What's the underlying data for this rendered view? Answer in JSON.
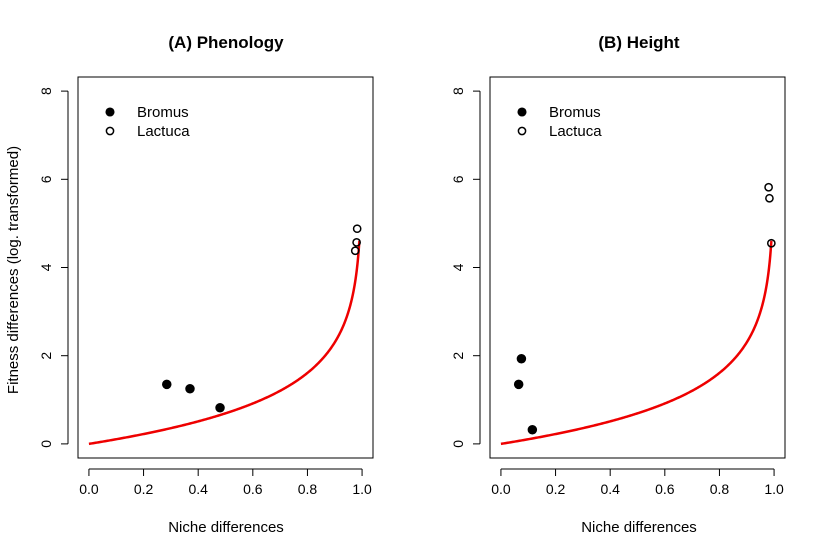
{
  "chart_data": [
    {
      "type": "scatter",
      "title": "(A) Phenology",
      "xlabel": "Niche differences",
      "ylabel": "Fitness differences (log. transformed)",
      "xlim": [
        0.0,
        1.0
      ],
      "ylim": [
        0,
        8
      ],
      "xticks": [
        "0.0",
        "0.2",
        "0.4",
        "0.6",
        "0.8",
        "1.0"
      ],
      "yticks": [
        "0",
        "2",
        "4",
        "6",
        "8"
      ],
      "legend_position": "top-left",
      "series": [
        {
          "name": "Bromus",
          "marker": "filled-circle",
          "points": [
            [
              0.285,
              1.35
            ],
            [
              0.37,
              1.25
            ],
            [
              0.48,
              0.82
            ]
          ]
        },
        {
          "name": "Lactuca",
          "marker": "open-circle",
          "points": [
            [
              0.975,
              4.38
            ],
            [
              0.98,
              4.57
            ],
            [
              0.982,
              4.88
            ]
          ]
        }
      ],
      "curve": {
        "color": "#ee0000",
        "x_max": 0.99
      }
    },
    {
      "type": "scatter",
      "title": "(B) Height",
      "xlabel": "Niche differences",
      "ylabel": "",
      "xlim": [
        0.0,
        1.0
      ],
      "ylim": [
        0,
        8
      ],
      "xticks": [
        "0.0",
        "0.2",
        "0.4",
        "0.6",
        "0.8",
        "1.0"
      ],
      "yticks": [
        "0",
        "2",
        "4",
        "6",
        "8"
      ],
      "legend_position": "top-left",
      "series": [
        {
          "name": "Bromus",
          "marker": "filled-circle",
          "points": [
            [
              0.075,
              1.93
            ],
            [
              0.065,
              1.35
            ],
            [
              0.115,
              0.32
            ]
          ]
        },
        {
          "name": "Lactuca",
          "marker": "open-circle",
          "points": [
            [
              0.98,
              5.82
            ],
            [
              0.983,
              5.57
            ],
            [
              0.99,
              4.55
            ]
          ]
        }
      ],
      "curve": {
        "color": "#ee0000",
        "x_max": 0.99
      }
    }
  ]
}
